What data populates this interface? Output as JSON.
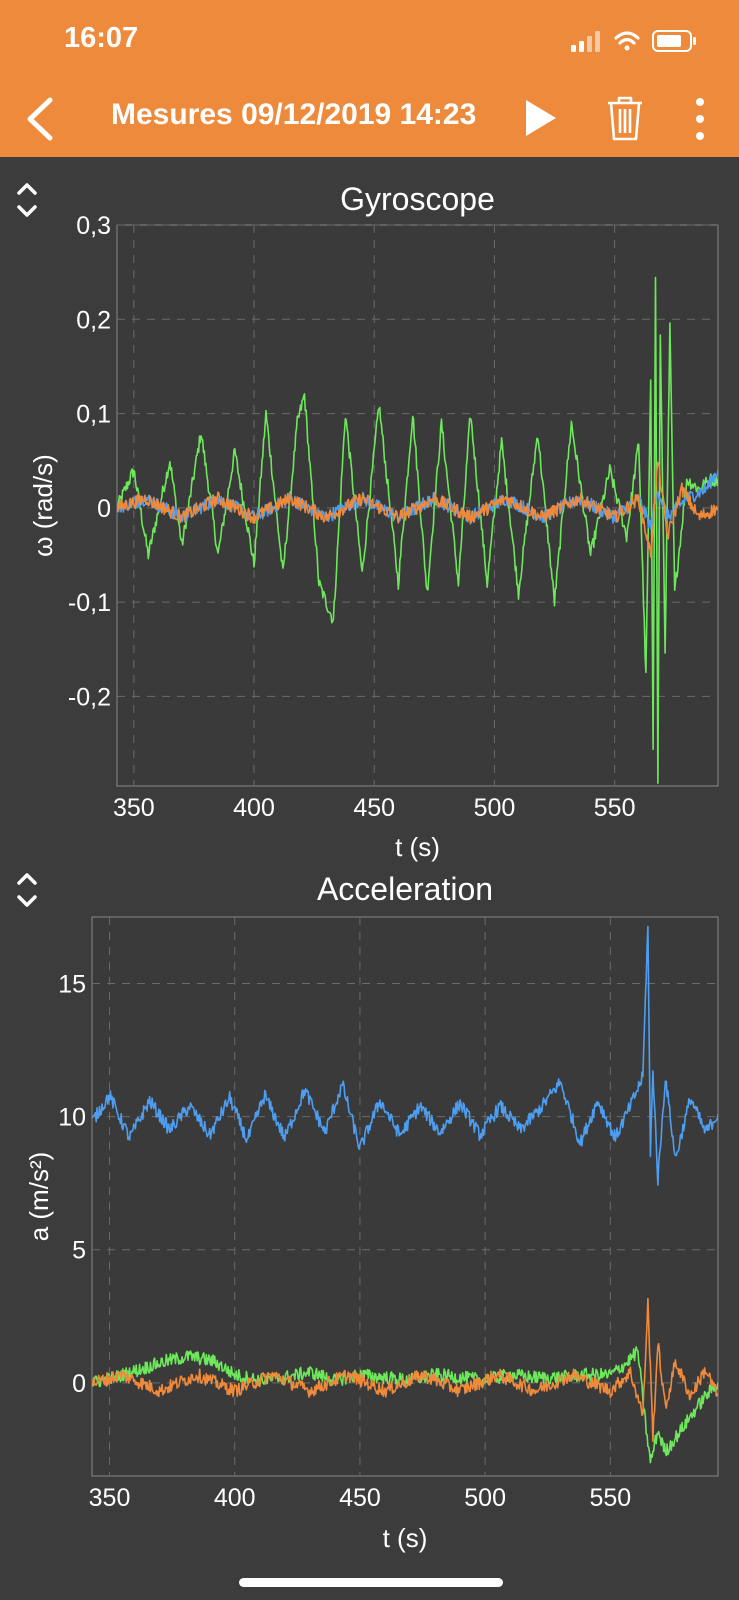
{
  "status_bar": {
    "time": "16:07"
  },
  "nav": {
    "title": "Mesures 09/12/2019 14:23"
  },
  "colors": {
    "background": "#3c3c3c",
    "plot_background": "#3a3a3a",
    "header": "#ee8a3c",
    "grid": "#6a6a6a",
    "series_blue": "#4d9ef0",
    "series_green": "#6de85a",
    "series_orange": "#f08a3a"
  },
  "icons": {
    "back": "chevron-left-icon",
    "play": "play-icon",
    "delete": "trash-icon",
    "more": "more-vertical-icon",
    "collapse": "expand-collapse-icon"
  },
  "chart_data": [
    {
      "type": "line",
      "title": "Gyroscope",
      "xlabel": "t (s)",
      "ylabel": "ω (rad/s)",
      "xlim": [
        343,
        593
      ],
      "ylim": [
        -0.295,
        0.3
      ],
      "x_ticks": [
        350,
        400,
        450,
        500,
        550
      ],
      "x_tick_labels": [
        "350",
        "400",
        "450",
        "500",
        "550"
      ],
      "y_ticks": [
        0.3,
        0.2,
        0.1,
        0,
        -0.1,
        -0.2
      ],
      "y_tick_labels": [
        "0,3",
        "0,2",
        "0,1",
        "0",
        "-0,1",
        "-0,2"
      ],
      "grid": true,
      "series": [
        {
          "color": "#6de85a",
          "x": [
            343,
            350,
            356,
            365,
            370,
            378,
            385,
            392,
            400,
            405,
            412,
            418,
            421,
            427,
            433,
            438,
            445,
            452,
            460,
            466,
            472,
            478,
            485,
            490,
            497,
            503,
            510,
            518,
            525,
            532,
            540,
            548,
            555,
            560,
            563,
            565,
            566,
            567,
            568,
            569,
            571,
            573,
            575,
            580,
            585,
            590,
            593
          ],
          "y": [
            0.0,
            0.04,
            -0.05,
            0.05,
            -0.04,
            0.08,
            -0.05,
            0.06,
            -0.06,
            0.1,
            -0.07,
            0.09,
            0.12,
            -0.08,
            -0.12,
            0.1,
            -0.07,
            0.11,
            -0.08,
            0.1,
            -0.09,
            0.09,
            -0.08,
            0.1,
            -0.08,
            0.07,
            -0.09,
            0.08,
            -0.1,
            0.09,
            -0.05,
            0.04,
            -0.03,
            0.07,
            -0.18,
            0.13,
            -0.25,
            0.24,
            -0.29,
            0.18,
            -0.15,
            0.19,
            -0.09,
            0.03,
            0.02,
            0.03,
            0.03
          ]
        },
        {
          "color": "#4d9ef0",
          "x": [
            343,
            355,
            370,
            385,
            400,
            415,
            430,
            445,
            460,
            475,
            490,
            505,
            520,
            535,
            550,
            560,
            565,
            568,
            572,
            580,
            588,
            593
          ],
          "y": [
            0.0,
            0.01,
            -0.01,
            0.01,
            -0.01,
            0.01,
            -0.01,
            0.01,
            -0.01,
            0.01,
            -0.01,
            0.01,
            -0.01,
            0.01,
            -0.01,
            0.01,
            -0.02,
            0.02,
            -0.01,
            0.01,
            0.02,
            0.04
          ]
        },
        {
          "color": "#f08a3a",
          "x": [
            343,
            355,
            370,
            385,
            400,
            415,
            430,
            445,
            460,
            475,
            490,
            505,
            520,
            535,
            550,
            560,
            565,
            568,
            572,
            578,
            585,
            593
          ],
          "y": [
            0.0,
            0.01,
            -0.01,
            0.01,
            -0.01,
            0.01,
            -0.01,
            0.01,
            -0.01,
            0.01,
            -0.01,
            0.01,
            -0.01,
            0.01,
            -0.01,
            0.01,
            -0.05,
            0.05,
            -0.03,
            0.02,
            -0.01,
            0.0
          ]
        }
      ]
    },
    {
      "type": "line",
      "title": "Acceleration",
      "xlabel": "t (s)",
      "ylabel": "a (m/s²)",
      "xlim": [
        343,
        593
      ],
      "ylim": [
        -3.5,
        17.5
      ],
      "x_ticks": [
        350,
        400,
        450,
        500,
        550
      ],
      "x_tick_labels": [
        "350",
        "400",
        "450",
        "500",
        "550"
      ],
      "y_ticks": [
        15,
        10,
        5,
        0
      ],
      "y_tick_labels": [
        "15",
        "10",
        "5",
        "0"
      ],
      "grid": true,
      "series": [
        {
          "color": "#4d9ef0",
          "x": [
            343,
            350,
            358,
            366,
            374,
            382,
            390,
            398,
            405,
            412,
            420,
            428,
            436,
            443,
            450,
            458,
            466,
            474,
            482,
            490,
            498,
            506,
            514,
            522,
            530,
            538,
            545,
            552,
            558,
            563,
            565,
            566,
            567,
            569,
            572,
            576,
            582,
            588,
            593
          ],
          "y": [
            9.8,
            10.8,
            9.2,
            10.6,
            9.5,
            10.4,
            9.3,
            10.7,
            9.1,
            10.8,
            9.2,
            11.0,
            9.4,
            11.2,
            8.8,
            10.6,
            9.3,
            10.4,
            9.4,
            10.5,
            9.3,
            10.4,
            9.5,
            10.3,
            11.3,
            9.0,
            10.6,
            9.2,
            10.4,
            11.5,
            17.3,
            8.5,
            11.8,
            7.6,
            11.5,
            8.4,
            10.7,
            9.4,
            10.1
          ]
        },
        {
          "color": "#6de85a",
          "x": [
            343,
            352,
            362,
            372,
            382,
            392,
            400,
            410,
            420,
            430,
            440,
            450,
            460,
            470,
            480,
            490,
            500,
            510,
            520,
            530,
            540,
            550,
            556,
            561,
            564,
            566,
            569,
            572,
            578,
            584,
            588,
            593
          ],
          "y": [
            0.0,
            0.2,
            0.5,
            0.8,
            1.0,
            0.8,
            0.3,
            0.1,
            0.2,
            0.4,
            0.1,
            0.3,
            0.2,
            0.1,
            0.3,
            0.2,
            0.1,
            0.3,
            0.2,
            0.2,
            0.3,
            0.3,
            0.7,
            1.2,
            -1.5,
            -3.0,
            -1.8,
            -2.6,
            -1.8,
            -1.0,
            -0.5,
            0.0
          ]
        },
        {
          "color": "#f08a3a",
          "x": [
            343,
            355,
            370,
            385,
            400,
            415,
            430,
            445,
            460,
            475,
            490,
            505,
            520,
            535,
            550,
            558,
            563,
            565,
            567,
            569,
            572,
            576,
            582,
            588,
            593
          ],
          "y": [
            0.0,
            0.3,
            -0.3,
            0.3,
            -0.3,
            0.3,
            -0.3,
            0.3,
            -0.3,
            0.3,
            -0.3,
            0.3,
            -0.3,
            0.3,
            -0.3,
            0.4,
            -1.2,
            3.0,
            -2.0,
            1.5,
            -1.0,
            0.8,
            -0.5,
            0.5,
            -0.5
          ]
        }
      ]
    }
  ]
}
